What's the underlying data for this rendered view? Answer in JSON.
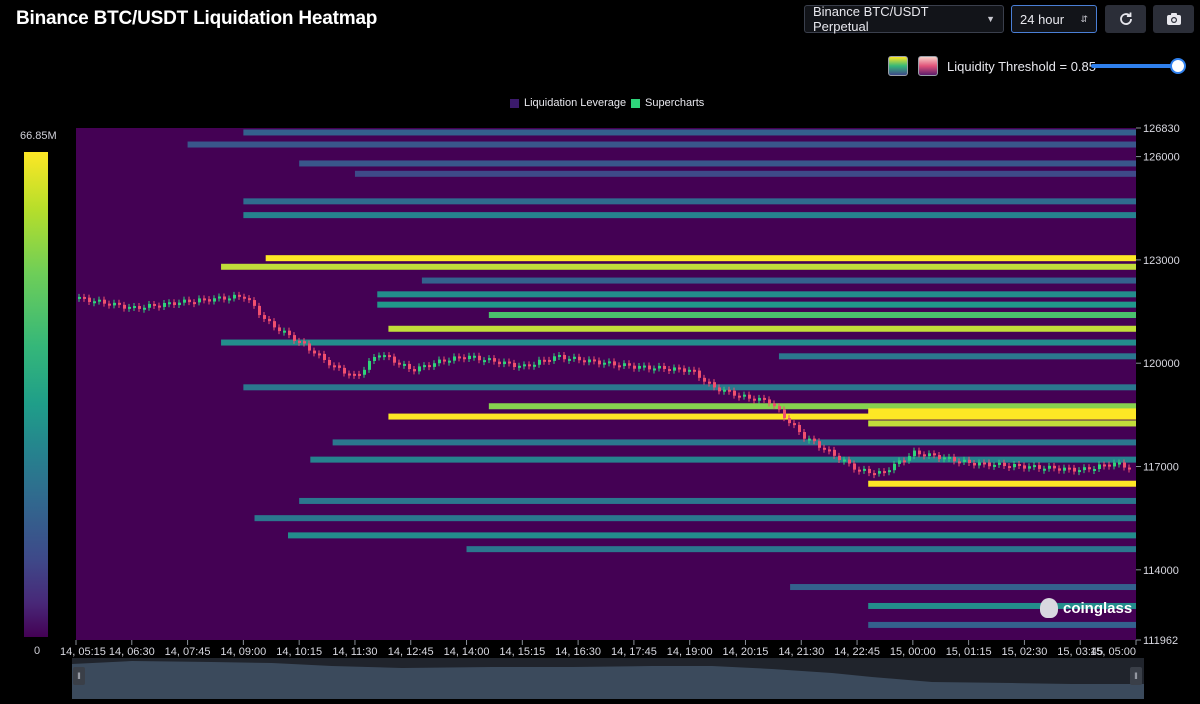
{
  "header": {
    "title": "Binance BTC/USDT Liquidation Heatmap",
    "pair_select": "Binance BTC/USDT Perpetual",
    "range_select": "24 hour",
    "refresh_icon": "refresh-icon",
    "camera_icon": "camera-icon"
  },
  "controls": {
    "threshold_label": "Liquidity Threshold = 0.85",
    "threshold_value": 0.85,
    "palette_1_icon": "viridis-palette-swatch",
    "palette_2_icon": "pink-palette-swatch"
  },
  "legend": {
    "items": [
      {
        "label": "Liquidation Leverage",
        "color": "#3b1a6b"
      },
      {
        "label": "Supercharts",
        "color": "#2ed47a"
      }
    ]
  },
  "colorbar": {
    "max_label": "66.85M",
    "min_label": "0"
  },
  "watermark": "coinglass",
  "chart_data": {
    "type": "heatmap",
    "title": "Binance BTC/USDT Liquidation Heatmap",
    "x_ticks": [
      "14, 05:15",
      "14, 06:30",
      "14, 07:45",
      "14, 09:00",
      "14, 10:15",
      "14, 11:30",
      "14, 12:45",
      "14, 14:00",
      "14, 15:15",
      "14, 16:30",
      "14, 17:45",
      "14, 19:00",
      "14, 20:15",
      "14, 21:30",
      "14, 22:45",
      "15, 00:00",
      "15, 01:15",
      "15, 02:30",
      "15, 03:45",
      "15, 05:00"
    ],
    "y_ticks": [
      126830,
      126000,
      123000,
      120000,
      117000,
      114000,
      111962
    ],
    "ylim": [
      111962,
      126830
    ],
    "colorscale_range": [
      0,
      66850000
    ],
    "bands": [
      {
        "price": 126700,
        "start": "14, 09:00",
        "level": 0.35
      },
      {
        "price": 126350,
        "start": "14, 07:45",
        "level": 0.3
      },
      {
        "price": 125800,
        "start": "14, 10:15",
        "level": 0.3
      },
      {
        "price": 125500,
        "start": "14, 11:30",
        "level": 0.25
      },
      {
        "price": 124700,
        "start": "14, 09:00",
        "level": 0.4
      },
      {
        "price": 124300,
        "start": "14, 09:00",
        "level": 0.5
      },
      {
        "price": 123050,
        "start": "14, 09:30",
        "level": 1.0
      },
      {
        "price": 122800,
        "start": "14, 08:30",
        "level": 0.95
      },
      {
        "price": 122400,
        "start": "14, 13:00",
        "level": 0.35
      },
      {
        "price": 122000,
        "start": "14, 12:00",
        "level": 0.55
      },
      {
        "price": 121700,
        "start": "14, 12:00",
        "level": 0.6
      },
      {
        "price": 121400,
        "start": "14, 14:30",
        "level": 0.8
      },
      {
        "price": 121000,
        "start": "14, 12:15",
        "level": 0.95
      },
      {
        "price": 120600,
        "start": "14, 08:30",
        "level": 0.55
      },
      {
        "price": 120200,
        "start": "14, 21:00",
        "level": 0.45
      },
      {
        "price": 119300,
        "start": "14, 09:00",
        "level": 0.45
      },
      {
        "price": 118750,
        "start": "14, 14:30",
        "level": 0.9
      },
      {
        "price": 118600,
        "start": "14, 23:00",
        "level": 1.0
      },
      {
        "price": 118450,
        "start": "14, 12:15",
        "level": 1.0
      },
      {
        "price": 118250,
        "start": "14, 23:00",
        "level": 0.95
      },
      {
        "price": 117700,
        "start": "14, 11:00",
        "level": 0.45
      },
      {
        "price": 117200,
        "start": "14, 10:30",
        "level": 0.5
      },
      {
        "price": 116500,
        "start": "14, 23:00",
        "level": 1.0
      },
      {
        "price": 116000,
        "start": "14, 10:15",
        "level": 0.45
      },
      {
        "price": 115500,
        "start": "14, 09:15",
        "level": 0.45
      },
      {
        "price": 115000,
        "start": "14, 10:00",
        "level": 0.55
      },
      {
        "price": 114600,
        "start": "14, 14:00",
        "level": 0.45
      },
      {
        "price": 113500,
        "start": "14, 21:15",
        "level": 0.35
      },
      {
        "price": 112950,
        "start": "14, 23:00",
        "level": 0.55
      },
      {
        "price": 112400,
        "start": "14, 23:00",
        "level": 0.35
      }
    ],
    "price_series": {
      "name": "Supercharts",
      "x": [
        "14, 05:15",
        "14, 06:30",
        "14, 07:45",
        "14, 09:00",
        "14, 09:30",
        "14, 10:15",
        "14, 11:00",
        "14, 11:30",
        "14, 12:00",
        "14, 12:45",
        "14, 13:30",
        "14, 14:00",
        "14, 15:15",
        "14, 16:00",
        "14, 16:30",
        "14, 17:45",
        "14, 19:00",
        "14, 19:30",
        "14, 20:15",
        "14, 20:45",
        "14, 21:30",
        "14, 22:15",
        "14, 22:45",
        "14, 23:15",
        "15, 00:00",
        "15, 00:30",
        "15, 01:15",
        "15, 02:30",
        "15, 03:45",
        "15, 04:30",
        "15, 05:00"
      ],
      "values": [
        121900,
        121600,
        121800,
        121950,
        121200,
        120600,
        119900,
        119600,
        120300,
        119800,
        120100,
        120200,
        119900,
        120200,
        120100,
        119900,
        119800,
        119300,
        119000,
        118900,
        117900,
        117300,
        116900,
        116800,
        117400,
        117300,
        117100,
        117000,
        116900,
        117100,
        116900
      ]
    }
  }
}
